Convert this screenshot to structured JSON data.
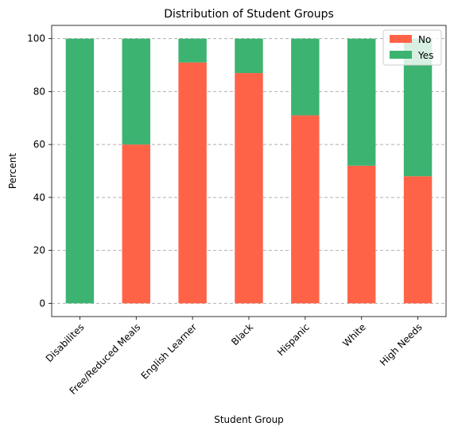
{
  "chart_data": {
    "type": "bar",
    "stacked": true,
    "title": "Distribution of Student Groups",
    "xlabel": "Student Group",
    "ylabel": "Percent",
    "categories": [
      "Disabilites",
      "Free/Reduced Meals",
      "English Learner",
      "Black",
      "Hispanic",
      "White",
      "High Needs"
    ],
    "series": [
      {
        "name": "No",
        "color": "#ff6347",
        "values": [
          0,
          60,
          91,
          87,
          71,
          52,
          48
        ]
      },
      {
        "name": "Yes",
        "color": "#3cb371",
        "values": [
          100,
          40,
          9,
          13,
          29,
          48,
          52
        ]
      }
    ],
    "ylim": [
      -5,
      105
    ],
    "yticks": [
      0,
      20,
      40,
      60,
      80,
      100
    ],
    "grid": "y-dashed",
    "legend": "top-right"
  }
}
